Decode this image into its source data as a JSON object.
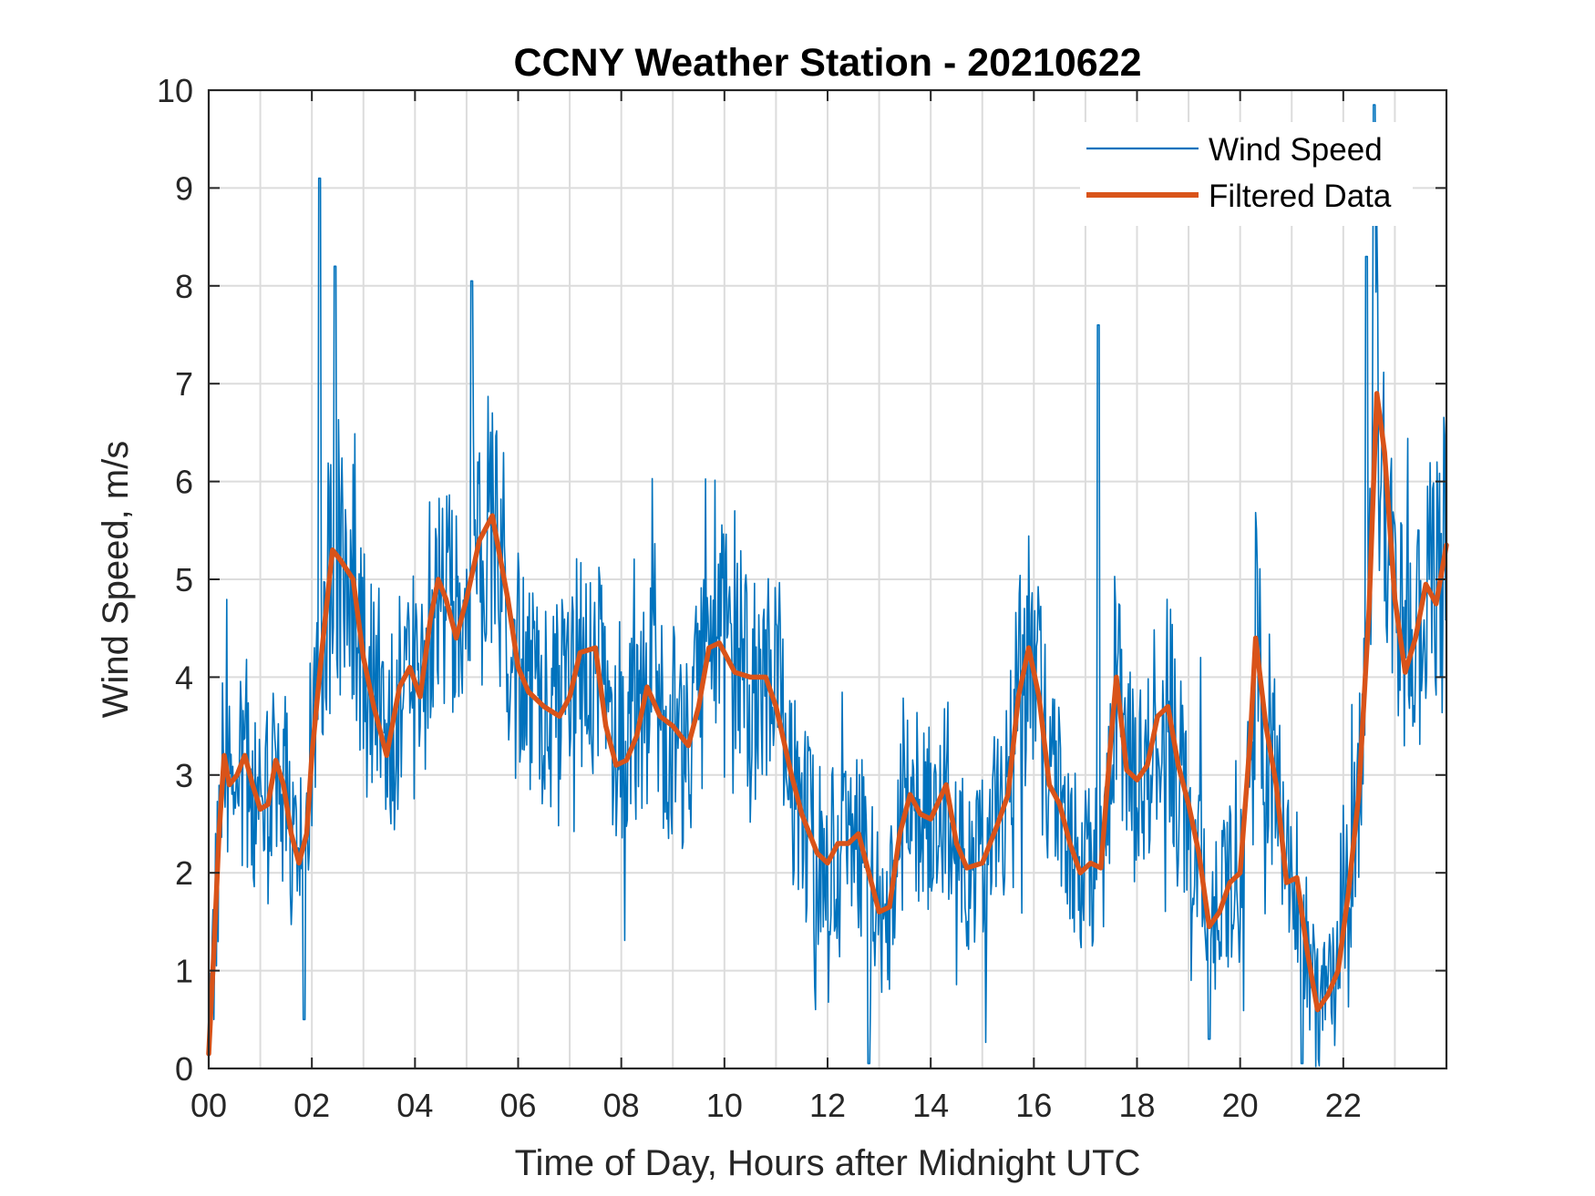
{
  "chart_data": {
    "type": "line",
    "title": "CCNY Weather Station - 20210622",
    "xlabel": "Time of Day, Hours after Midnight UTC",
    "ylabel": "Wind Speed, m/s",
    "xlim": [
      0,
      24
    ],
    "ylim": [
      0,
      10
    ],
    "x_ticks": [
      0,
      2,
      4,
      6,
      8,
      10,
      12,
      14,
      16,
      18,
      20,
      22
    ],
    "x_tick_labels": [
      "00",
      "02",
      "04",
      "06",
      "08",
      "10",
      "12",
      "14",
      "16",
      "18",
      "20",
      "22"
    ],
    "y_ticks": [
      0,
      1,
      2,
      3,
      4,
      5,
      6,
      7,
      8,
      9,
      10
    ],
    "y_tick_labels": [
      "0",
      "1",
      "2",
      "3",
      "4",
      "5",
      "6",
      "7",
      "8",
      "9",
      "10"
    ],
    "x_grid_step": 1,
    "grid": true,
    "legend_position": "top-right",
    "series": [
      {
        "name": "Wind Speed",
        "color": "#0072BD",
        "style": "raw-noisy",
        "note": "approx. 1-min samples, noisy around filtered curve",
        "notable_peaks": [
          [
            2.15,
            9.1
          ],
          [
            2.45,
            8.2
          ],
          [
            5.1,
            8.05
          ],
          [
            17.25,
            7.6
          ],
          [
            22.6,
            9.85
          ],
          [
            22.45,
            8.3
          ]
        ],
        "notable_lows": [
          [
            1.85,
            0.5
          ],
          [
            12.8,
            0.05
          ],
          [
            21.2,
            0.05
          ],
          [
            19.4,
            0.3
          ]
        ]
      },
      {
        "name": "Filtered Data",
        "color": "#D95319",
        "x": [
          0.0,
          0.1,
          0.2,
          0.3,
          0.4,
          0.55,
          0.7,
          0.85,
          1.0,
          1.15,
          1.3,
          1.45,
          1.6,
          1.75,
          1.9,
          2.0,
          2.2,
          2.4,
          2.55,
          2.8,
          3.0,
          3.2,
          3.45,
          3.7,
          3.9,
          4.1,
          4.3,
          4.45,
          4.6,
          4.8,
          5.0,
          5.25,
          5.5,
          5.8,
          6.0,
          6.2,
          6.5,
          6.8,
          7.0,
          7.2,
          7.5,
          7.7,
          7.9,
          8.1,
          8.3,
          8.5,
          8.75,
          9.0,
          9.3,
          9.5,
          9.7,
          9.9,
          10.2,
          10.5,
          10.8,
          11.0,
          11.3,
          11.5,
          11.8,
          12.0,
          12.2,
          12.4,
          12.6,
          12.8,
          13.0,
          13.2,
          13.4,
          13.6,
          13.8,
          14.0,
          14.3,
          14.5,
          14.7,
          15.0,
          15.3,
          15.5,
          15.7,
          15.9,
          16.1,
          16.3,
          16.5,
          16.7,
          16.9,
          17.1,
          17.3,
          17.5,
          17.6,
          17.8,
          18.0,
          18.2,
          18.4,
          18.6,
          18.8,
          19.0,
          19.2,
          19.4,
          19.6,
          19.8,
          20.0,
          20.2,
          20.3,
          20.5,
          20.7,
          20.9,
          21.1,
          21.3,
          21.5,
          21.7,
          21.9,
          22.1,
          22.3,
          22.5,
          22.65,
          22.8,
          23.0,
          23.2,
          23.4,
          23.6,
          23.8,
          24.0
        ],
        "values": [
          0.15,
          1.2,
          2.4,
          3.2,
          2.9,
          3.0,
          3.2,
          2.9,
          2.65,
          2.7,
          3.15,
          2.9,
          2.4,
          2.1,
          2.4,
          3.2,
          4.3,
          5.3,
          5.2,
          5.0,
          4.2,
          3.7,
          3.2,
          3.9,
          4.1,
          3.8,
          4.6,
          5.0,
          4.8,
          4.4,
          4.8,
          5.4,
          5.65,
          4.8,
          4.1,
          3.85,
          3.7,
          3.6,
          3.8,
          4.25,
          4.3,
          3.5,
          3.1,
          3.15,
          3.4,
          3.9,
          3.6,
          3.5,
          3.3,
          3.7,
          4.3,
          4.35,
          4.05,
          4.0,
          4.0,
          3.7,
          3.0,
          2.6,
          2.2,
          2.1,
          2.3,
          2.3,
          2.4,
          2.0,
          1.6,
          1.65,
          2.4,
          2.8,
          2.6,
          2.55,
          2.9,
          2.3,
          2.05,
          2.1,
          2.5,
          2.8,
          3.8,
          4.3,
          3.8,
          2.9,
          2.7,
          2.3,
          2.0,
          2.1,
          2.05,
          3.4,
          4.0,
          3.05,
          2.95,
          3.1,
          3.6,
          3.7,
          3.1,
          2.7,
          2.2,
          1.45,
          1.6,
          1.9,
          2.0,
          3.4,
          4.4,
          3.5,
          2.9,
          1.9,
          1.95,
          1.2,
          0.6,
          0.75,
          1.0,
          1.8,
          2.8,
          4.7,
          6.9,
          6.3,
          4.8,
          4.05,
          4.4,
          4.95,
          4.75,
          5.35
        ]
      }
    ]
  }
}
